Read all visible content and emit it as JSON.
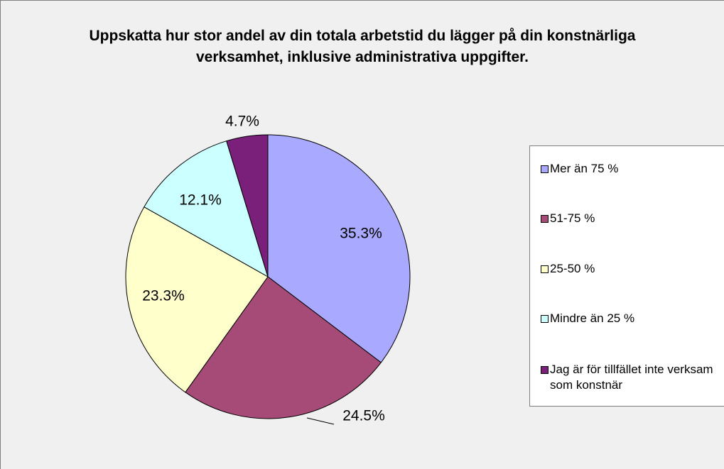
{
  "chart_data": {
    "type": "pie",
    "title": "Uppskatta hur stor andel av din totala arbetstid du lägger på din konstnärliga verksamhet, inklusive administrativa uppgifter.",
    "categories": [
      "Mer än 75 %",
      "51-75 %",
      "25-50 %",
      "Mindre än 25 %",
      "Jag är för tillfället inte verksam som konstnär"
    ],
    "values": [
      35.3,
      24.5,
      23.3,
      12.1,
      4.7
    ],
    "value_labels": [
      "35.3%",
      "24.5%",
      "23.3%",
      "12.1%",
      "4.7%"
    ],
    "colors": [
      "#a9a9ff",
      "#a64a77",
      "#ffffcc",
      "#ccffff",
      "#7a1f7a"
    ],
    "legend": "right"
  }
}
